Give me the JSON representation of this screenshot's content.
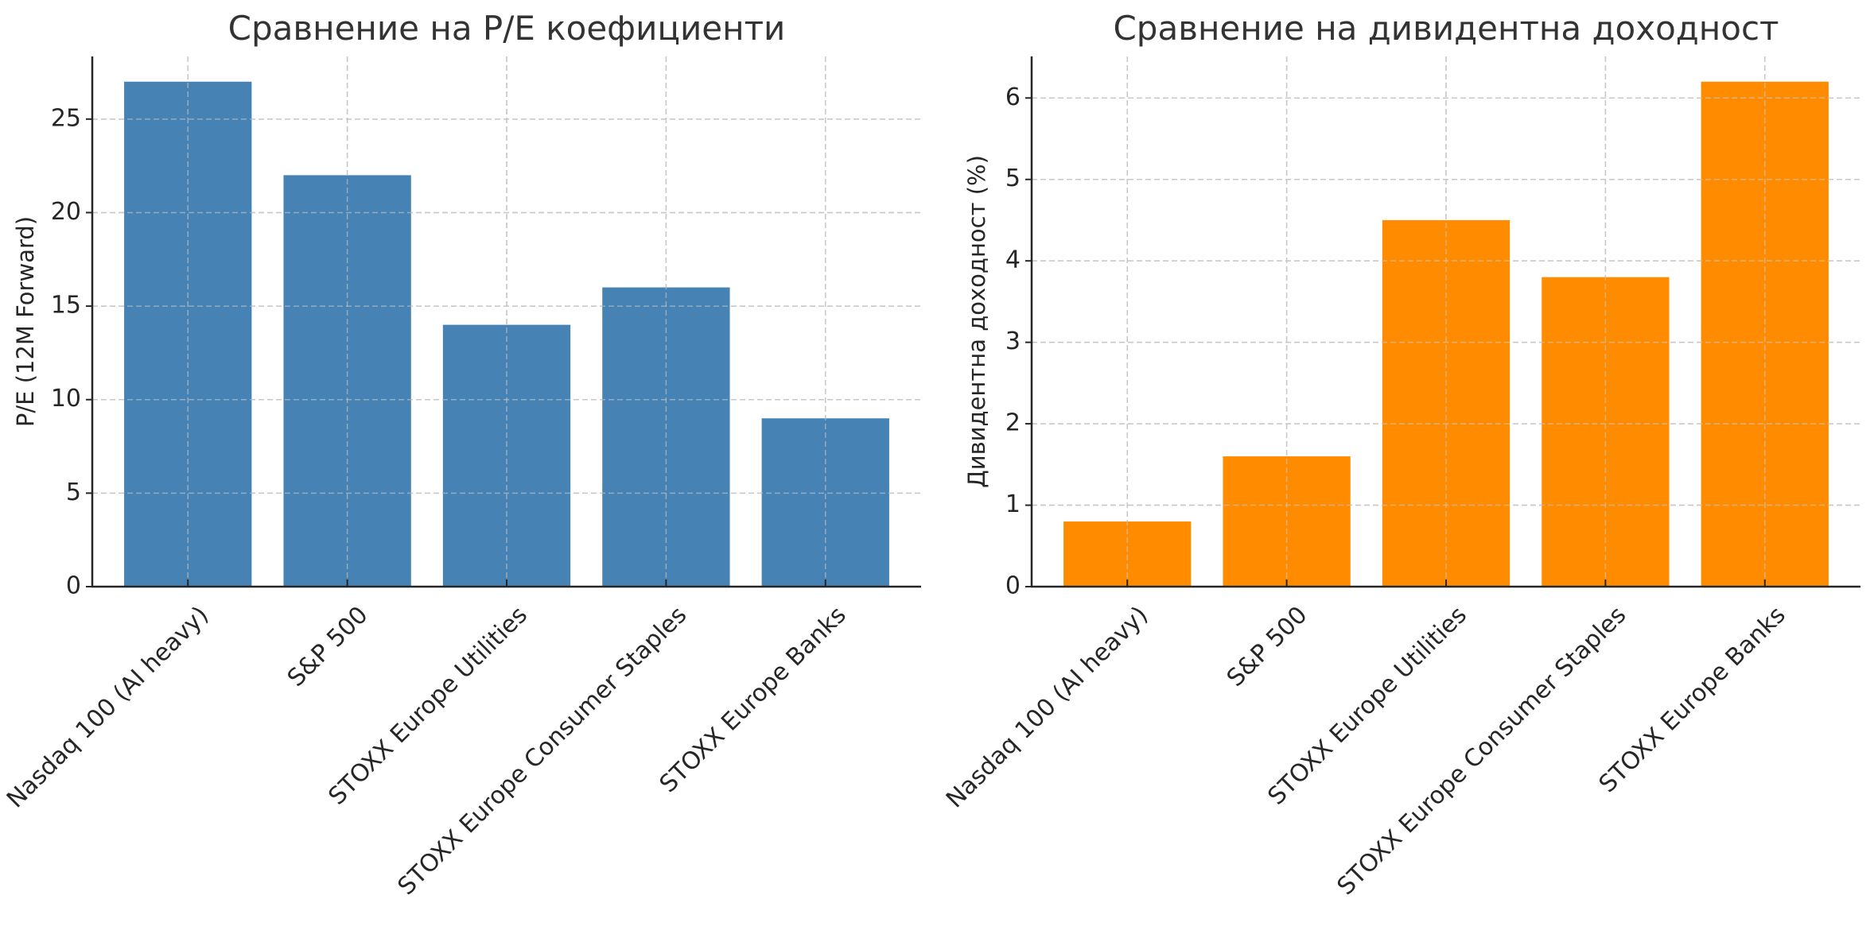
{
  "chart_data": [
    {
      "type": "bar",
      "title": "Сравнение на P/E коефициенти",
      "xlabel": "",
      "ylabel": "P/E (12M Forward)",
      "categories": [
        "Nasdaq 100 (AI heavy)",
        "S&P 500",
        "STOXX Europe Utilities",
        "STOXX Europe Consumer Staples",
        "STOXX Europe Banks"
      ],
      "values": [
        27,
        22,
        14,
        16,
        9
      ],
      "ylim": [
        0,
        28.35
      ],
      "yticks": [
        0,
        5,
        10,
        15,
        20,
        25
      ],
      "grid": true,
      "color": "#4682b4",
      "xtick_rotation": 45
    },
    {
      "type": "bar",
      "title": "Сравнение на дивидентна доходност",
      "xlabel": "",
      "ylabel": "Дивидентна доходност (%)",
      "categories": [
        "Nasdaq 100 (AI heavy)",
        "S&P 500",
        "STOXX Europe Utilities",
        "STOXX Europe Consumer Staples",
        "STOXX Europe Banks"
      ],
      "values": [
        0.8,
        1.6,
        4.5,
        3.8,
        6.2
      ],
      "ylim": [
        0,
        6.51
      ],
      "yticks": [
        0,
        1,
        2,
        3,
        4,
        5,
        6
      ],
      "grid": true,
      "color": "#ff8c00",
      "xtick_rotation": 45
    }
  ]
}
